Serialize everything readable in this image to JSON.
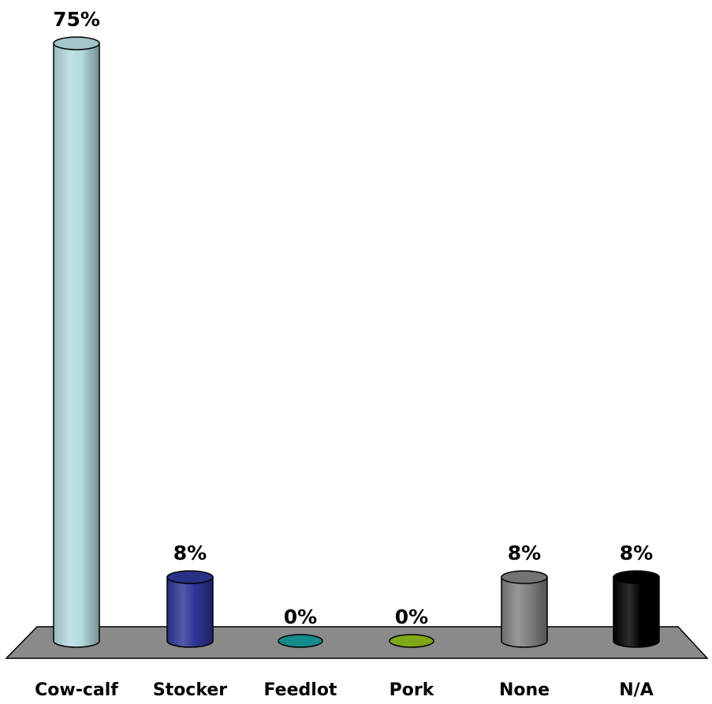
{
  "chart_data": {
    "type": "bar",
    "style": "3d-cylinder",
    "categories": [
      "Cow-calf",
      "Stocker",
      "Feedlot",
      "Pork",
      "None",
      "N/A"
    ],
    "values": [
      75,
      8,
      0,
      0,
      8,
      8
    ],
    "value_labels": [
      "75%",
      "8%",
      "0%",
      "0%",
      "8%",
      "8%"
    ],
    "colors": [
      "#b4dcdf",
      "#2e3597",
      "#148c8c",
      "#7fa818",
      "#808080",
      "#000000"
    ],
    "floor_color": "#8a8a8a",
    "ylim": [
      0,
      75
    ],
    "grid": false,
    "legend": "none"
  }
}
